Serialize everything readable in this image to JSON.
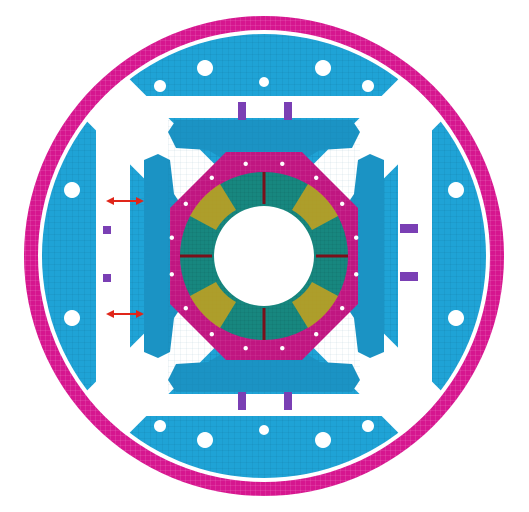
{
  "colors": {
    "shell": "#d6168f",
    "shell_mesh": "#f07ac4",
    "yoke": "#1fa3d6",
    "yoke_mesh": "#0b5f86",
    "pad": "#1b93c4",
    "collar": "#c01681",
    "coil": "#17877f",
    "coil_accent": "#c8a21c",
    "key": "#7a3fb4",
    "arrow": "#e0261a",
    "background": "#ffffff"
  },
  "icons": {
    "arrow": "double-headed-arrow-icon",
    "bore": "circle-void-icon"
  }
}
